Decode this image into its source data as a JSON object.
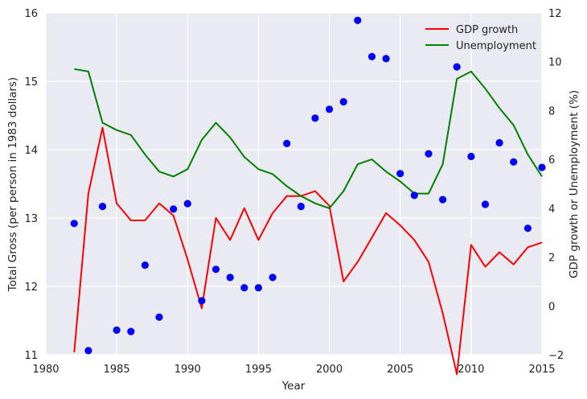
{
  "chart_data": {
    "type": "scatter+line",
    "xlabel": "Year",
    "ylabel_left": "Total Gross (per person in 1983 dollars)",
    "ylabel_right": "GDP growth or Unemployment (%)",
    "xlim": [
      1980,
      2015
    ],
    "ylim_left": [
      11,
      16
    ],
    "ylim_right": [
      -2,
      12
    ],
    "x_ticks": [
      "1980",
      "1985",
      "1990",
      "1995",
      "2000",
      "2005",
      "2010",
      "2015"
    ],
    "y_left_ticks": [
      "11",
      "12",
      "13",
      "14",
      "15",
      "16"
    ],
    "y_right_ticks": [
      "−2",
      "0",
      "2",
      "4",
      "6",
      "8",
      "10",
      "12"
    ],
    "grid": true,
    "legend_placement": "upper-right",
    "colors": {
      "background": "#EAEAF2",
      "grid": "#FFFFFF",
      "scatter": "#0000FF",
      "gdp": "#FF0000",
      "unemployment": "#008000"
    },
    "scatter": {
      "axis": "left",
      "points": [
        [
          1982,
          12.92
        ],
        [
          1983,
          11.06
        ],
        [
          1984,
          13.17
        ],
        [
          1985,
          11.36
        ],
        [
          1986,
          11.34
        ],
        [
          1987,
          12.31
        ],
        [
          1988,
          11.55
        ],
        [
          1989,
          13.13
        ],
        [
          1990,
          13.21
        ],
        [
          1991,
          11.79
        ],
        [
          1992,
          12.25
        ],
        [
          1993,
          12.13
        ],
        [
          1994,
          11.98
        ],
        [
          1995,
          11.98
        ],
        [
          1996,
          12.13
        ],
        [
          1997,
          14.09
        ],
        [
          1998,
          13.17
        ],
        [
          1999,
          14.46
        ],
        [
          2000,
          14.59
        ],
        [
          2001,
          14.7
        ],
        [
          2002,
          15.89
        ],
        [
          2003,
          15.36
        ],
        [
          2004,
          15.33
        ],
        [
          2005,
          13.65
        ],
        [
          2006,
          13.33
        ],
        [
          2007,
          13.94
        ],
        [
          2008,
          13.27
        ],
        [
          2009,
          15.21
        ],
        [
          2010,
          13.9
        ],
        [
          2011,
          13.2
        ],
        [
          2012,
          14.1
        ],
        [
          2013,
          13.82
        ],
        [
          2014,
          12.85
        ],
        [
          2015,
          13.74
        ]
      ]
    },
    "series": [
      {
        "name": "GDP growth",
        "axis": "right",
        "x": [
          1982,
          1983,
          1984,
          1985,
          1986,
          1987,
          1988,
          1989,
          1990,
          1991,
          1992,
          1993,
          1994,
          1995,
          1996,
          1997,
          1998,
          1999,
          2000,
          2001,
          2002,
          2003,
          2004,
          2005,
          2006,
          2007,
          2008,
          2009,
          2010,
          2011,
          2012,
          2013,
          2014,
          2015
        ],
        "values": [
          -1.9,
          4.6,
          7.3,
          4.2,
          3.5,
          3.5,
          4.2,
          3.7,
          1.9,
          -0.1,
          3.6,
          2.7,
          4.0,
          2.7,
          3.8,
          4.5,
          4.5,
          4.7,
          4.1,
          1.0,
          1.8,
          2.8,
          3.8,
          3.3,
          2.7,
          1.8,
          -0.3,
          -2.8,
          2.5,
          1.6,
          2.2,
          1.7,
          2.4,
          2.6
        ]
      },
      {
        "name": "Unemployment",
        "axis": "right",
        "x": [
          1982,
          1983,
          1984,
          1985,
          1986,
          1987,
          1988,
          1989,
          1990,
          1991,
          1992,
          1993,
          1994,
          1995,
          1996,
          1997,
          1998,
          1999,
          2000,
          2001,
          2002,
          2003,
          2004,
          2005,
          2006,
          2007,
          2008,
          2009,
          2010,
          2011,
          2012,
          2013,
          2014,
          2015
        ],
        "values": [
          9.7,
          9.6,
          7.5,
          7.2,
          7.0,
          6.2,
          5.5,
          5.3,
          5.6,
          6.8,
          7.5,
          6.9,
          6.1,
          5.6,
          5.4,
          4.9,
          4.5,
          4.2,
          4.0,
          4.7,
          5.8,
          6.0,
          5.5,
          5.1,
          4.6,
          4.6,
          5.8,
          9.3,
          9.6,
          8.9,
          8.1,
          7.4,
          6.2,
          5.3
        ]
      }
    ]
  }
}
